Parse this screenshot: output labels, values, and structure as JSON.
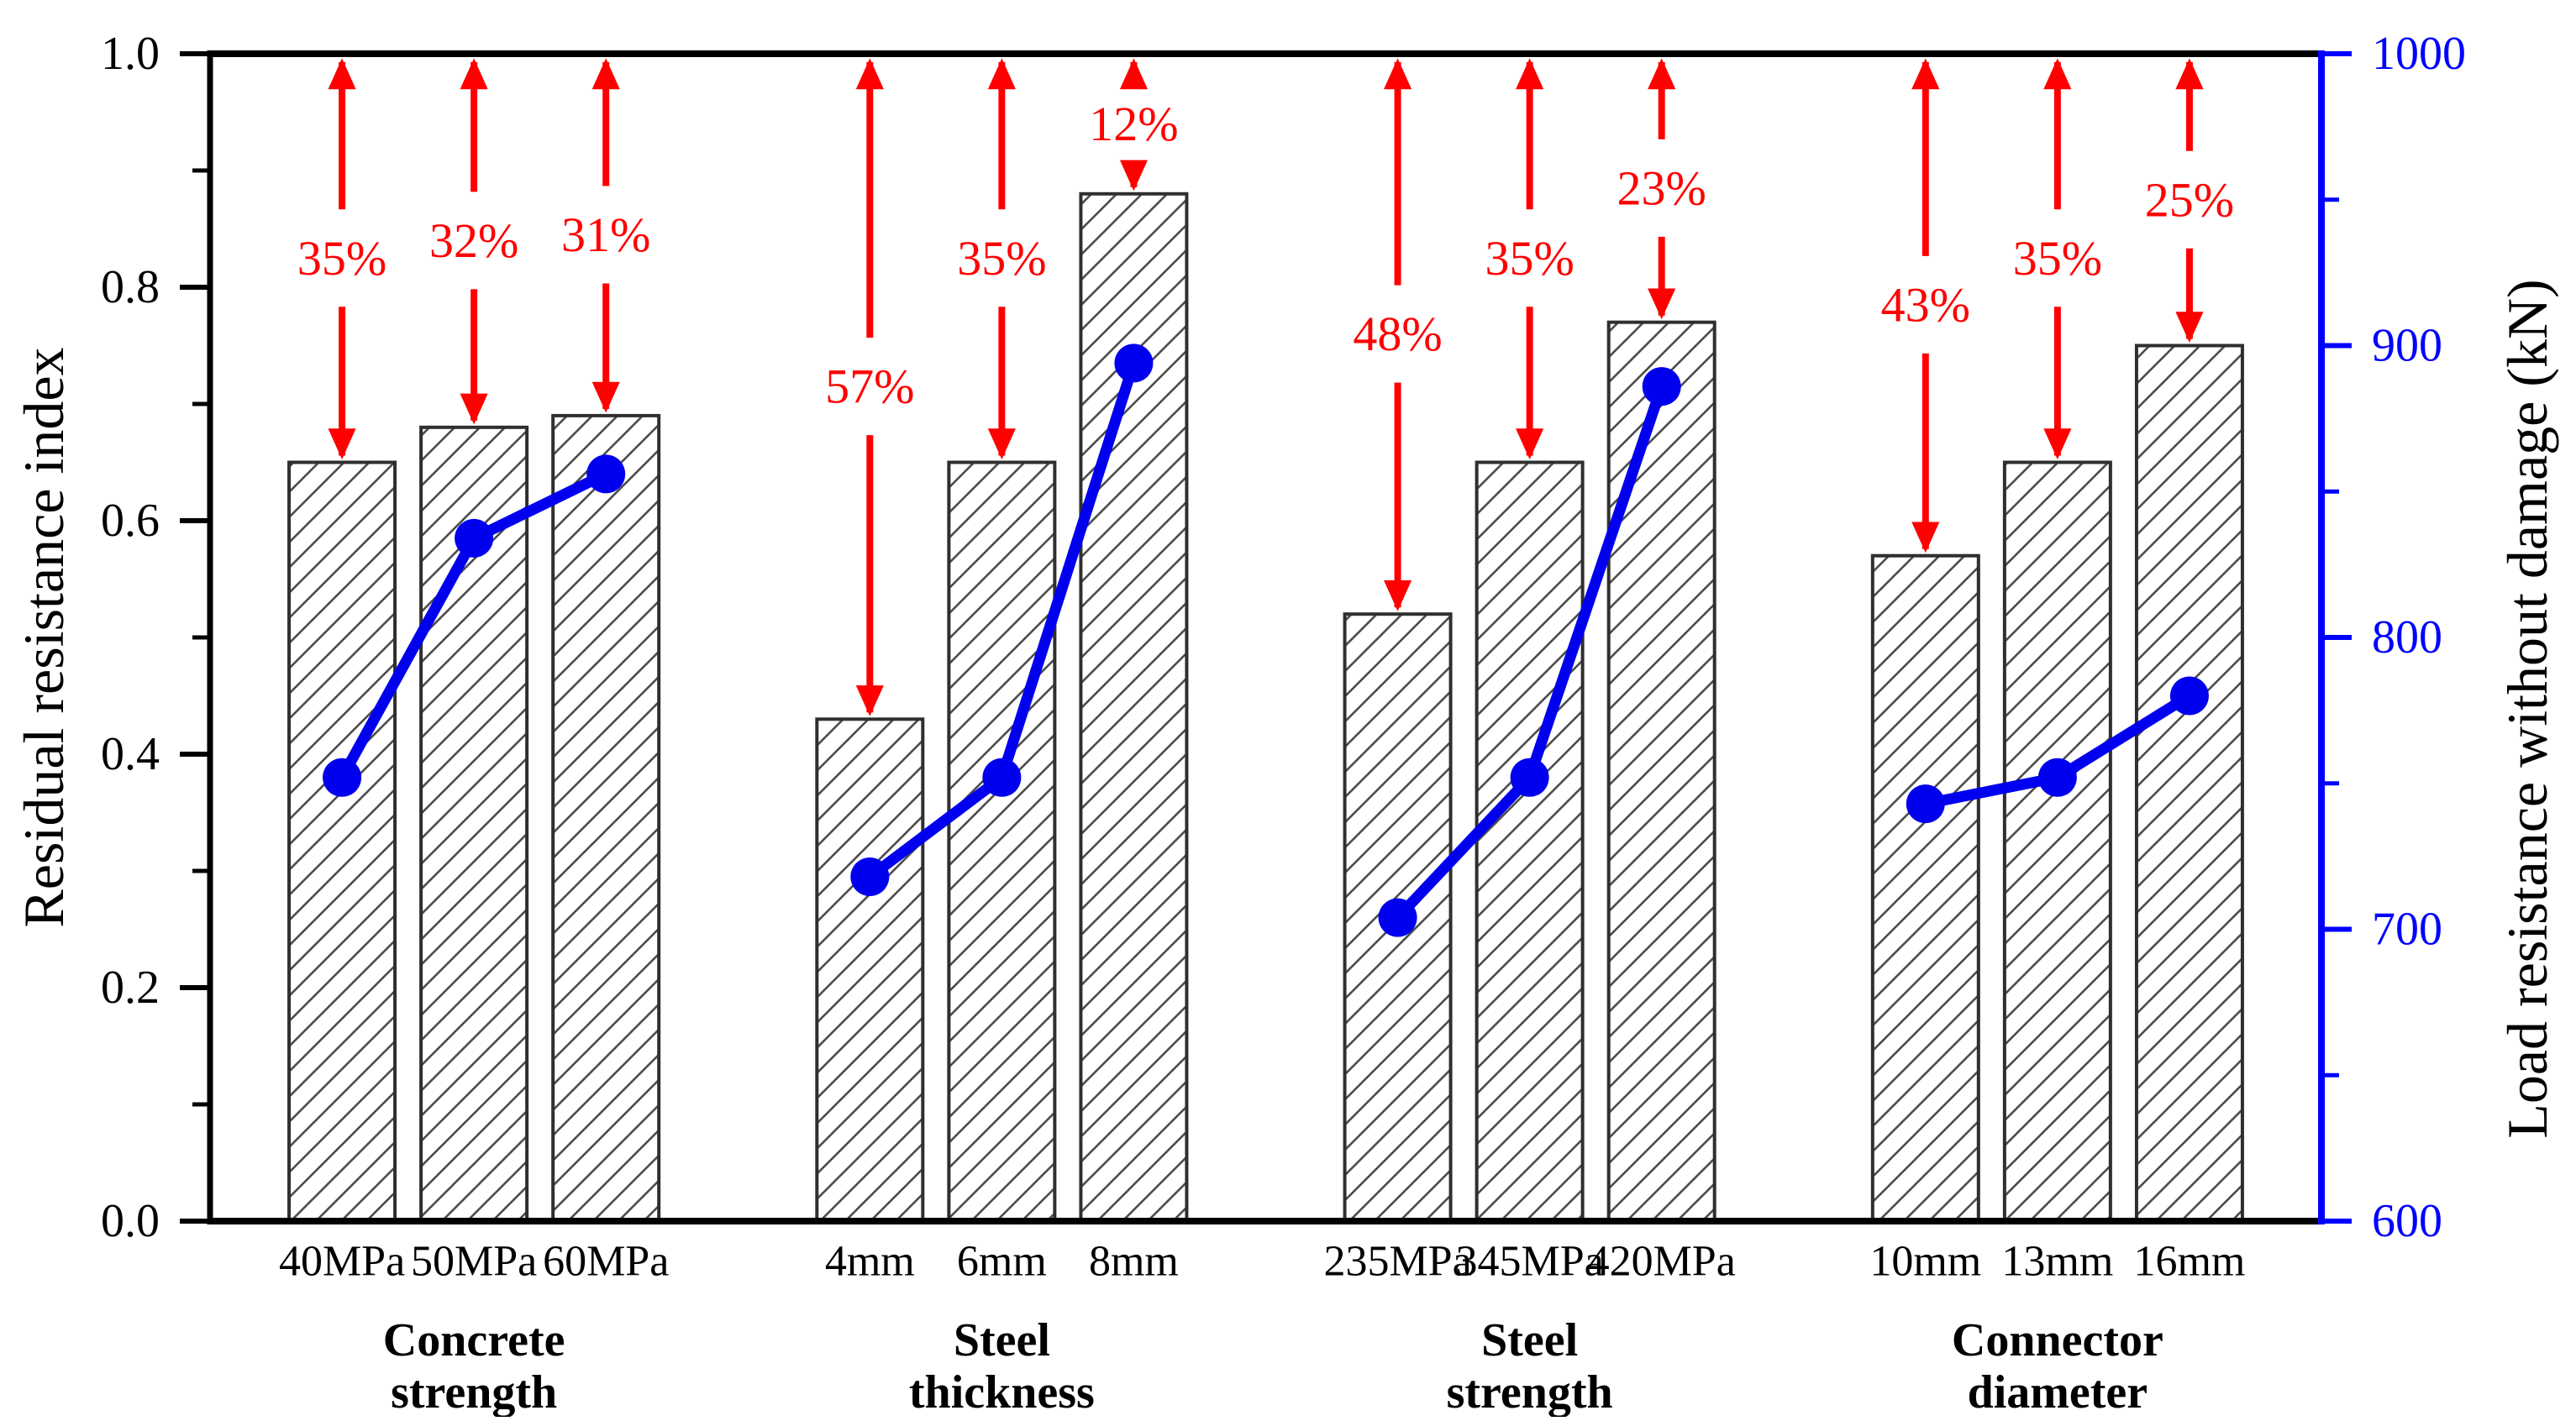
{
  "chart_data": {
    "type": "bar-line-combo",
    "title": "",
    "left_axis": {
      "label": "Residual resistance index",
      "min": 0.0,
      "max": 1.0,
      "major_tick_values": [
        0.0,
        0.2,
        0.4,
        0.6,
        0.8,
        1.0
      ],
      "major_tick_labels": [
        "0.0",
        "0.2",
        "0.4",
        "0.6",
        "0.8",
        "1.0"
      ],
      "minor_tick_values": [
        0.1,
        0.3,
        0.5,
        0.7,
        0.9
      ]
    },
    "right_axis": {
      "label": "Load resistance without damage (kN)",
      "min": 600,
      "max": 1000,
      "major_tick_values": [
        600,
        700,
        800,
        900,
        1000
      ],
      "major_tick_labels": [
        "600",
        "700",
        "800",
        "900",
        "1000"
      ],
      "minor_tick_values": [
        650,
        750,
        850,
        950
      ]
    },
    "bar_series_name": "Residual resistance index (bars)",
    "line_series_name": "Load resistance without damage (line)",
    "groups": [
      {
        "label_lines": [
          "Concrete",
          "strength"
        ],
        "categories": [
          "40MPa",
          "50MPa",
          "60MPa"
        ],
        "residual_index": [
          0.65,
          0.68,
          0.69
        ],
        "load_kn": [
          752,
          834,
          856
        ],
        "reduction_labels": [
          "35%",
          "32%",
          "31%"
        ]
      },
      {
        "label_lines": [
          "Steel",
          "thickness"
        ],
        "categories": [
          "4mm",
          "6mm",
          "8mm"
        ],
        "residual_index": [
          0.43,
          0.65,
          0.88
        ],
        "load_kn": [
          718,
          752,
          894
        ],
        "reduction_labels": [
          "57%",
          "35%",
          "12%"
        ]
      },
      {
        "label_lines": [
          "Steel",
          "strength"
        ],
        "categories": [
          "235MPa",
          "345MPa",
          "420MPa"
        ],
        "residual_index": [
          0.52,
          0.65,
          0.77
        ],
        "load_kn": [
          704,
          752,
          886
        ],
        "reduction_labels": [
          "48%",
          "35%",
          "23%"
        ]
      },
      {
        "label_lines": [
          "Connector",
          "diameter"
        ],
        "categories": [
          "10mm",
          "13mm",
          "16mm"
        ],
        "residual_index": [
          0.57,
          0.65,
          0.75
        ],
        "load_kn": [
          743,
          752,
          780
        ],
        "reduction_labels": [
          "43%",
          "35%",
          "25%"
        ]
      }
    ],
    "colors": {
      "axis": "#000000",
      "right_axis": "#0000ff",
      "line": "#0000ee",
      "marker": "#0000ee",
      "arrow": "#ff0000",
      "percent_text": "#ff0000",
      "bar_fill": "#ffffff",
      "bar_edge": "#2f2f2f",
      "bar_hatch": "#4d4d4d",
      "text": "#000000"
    },
    "legend": {
      "visible": false
    },
    "grid": {
      "visible": false
    }
  }
}
